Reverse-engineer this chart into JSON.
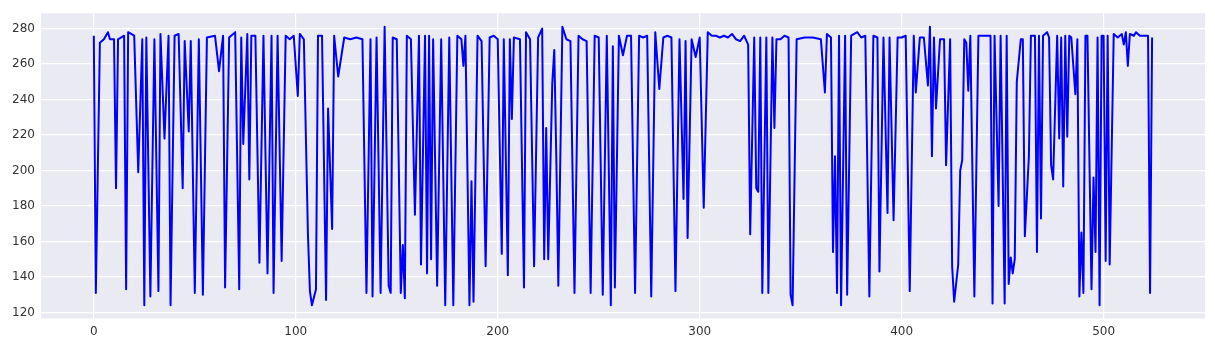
{
  "chart_data": {
    "type": "line",
    "color": "#0000ff",
    "xlim": [
      -26.2,
      550.2
    ],
    "ylim": [
      116.5,
      288.7
    ],
    "xticks": [
      0,
      100,
      200,
      300,
      400,
      500
    ],
    "yticks": [
      120,
      140,
      160,
      180,
      200,
      220,
      240,
      260,
      280
    ],
    "grid": true,
    "x": [
      0,
      1,
      3,
      5,
      7,
      8,
      10,
      11,
      12,
      15,
      16,
      17,
      20,
      22,
      24,
      25,
      26,
      28,
      30,
      32,
      33,
      35,
      37,
      38,
      40,
      42,
      44,
      45,
      47,
      48,
      50,
      52,
      54,
      56,
      60,
      62,
      64,
      65,
      67,
      70,
      72,
      73,
      74,
      76,
      77,
      78,
      80,
      82,
      84,
      86,
      88,
      89,
      91,
      93,
      95,
      97,
      99,
      101,
      102,
      104,
      106,
      107,
      108,
      110,
      111,
      113,
      115,
      116,
      118,
      119,
      121,
      124,
      127,
      130,
      133,
      135,
      137,
      138,
      140,
      142,
      144,
      146,
      147,
      148,
      150,
      152,
      153,
      154,
      155,
      157,
      159,
      161,
      162,
      164,
      165,
      166,
      167,
      168,
      170,
      172,
      174,
      176,
      178,
      180,
      182,
      183,
      184,
      186,
      187,
      188,
      190,
      192,
      194,
      196,
      198,
      200,
      202,
      203,
      205,
      206,
      207,
      208,
      211,
      213,
      214,
      216,
      218,
      220,
      222,
      223,
      224,
      225,
      227,
      228,
      229,
      230,
      232,
      234,
      236,
      238,
      240,
      242,
      244,
      246,
      248,
      250,
      252,
      254,
      256,
      257,
      258,
      260,
      262,
      264,
      266,
      268,
      270,
      272,
      274,
      276,
      278,
      280,
      282,
      284,
      286,
      288,
      290,
      292,
      293,
      294,
      296,
      298,
      300,
      302,
      304,
      306,
      308,
      310,
      312,
      314,
      316,
      318,
      320,
      322,
      324,
      325,
      327,
      328,
      329,
      330,
      331,
      333,
      334,
      336,
      337,
      338,
      340,
      342,
      344,
      345,
      346,
      348,
      352,
      356,
      360,
      362,
      363,
      365,
      366,
      367,
      368,
      369,
      370,
      372,
      373,
      375,
      378,
      380,
      382,
      384,
      386,
      388,
      389,
      391,
      393,
      394,
      396,
      398,
      400,
      402,
      404,
      406,
      407,
      409,
      411,
      413,
      414,
      415,
      416,
      417,
      419,
      421,
      422,
      424,
      425,
      426,
      428,
      429,
      430,
      431,
      432,
      433,
      434,
      436,
      438,
      440,
      442,
      444,
      445,
      446,
      448,
      449,
      451,
      452,
      453,
      454,
      455,
      456,
      457,
      459,
      460,
      461,
      463,
      464,
      466,
      467,
      468,
      469,
      470,
      472,
      473,
      474,
      475,
      477,
      478,
      479,
      480,
      481,
      482,
      483,
      484,
      486,
      487,
      488,
      489,
      490,
      491,
      492,
      494,
      495,
      496,
      497,
      498,
      499,
      500,
      501,
      502,
      503,
      505,
      507,
      509,
      510,
      511,
      512,
      513,
      515,
      516,
      518,
      520,
      522,
      523,
      524
    ],
    "values": [
      276,
      131,
      272,
      274,
      278,
      274,
      274,
      190,
      274,
      276,
      133,
      278,
      276,
      199,
      274,
      124,
      275,
      129,
      274,
      132,
      277,
      218,
      276,
      124,
      276,
      277,
      190,
      273,
      222,
      273,
      131,
      274,
      130,
      275,
      276,
      256,
      276,
      134,
      275,
      278,
      133,
      275,
      215,
      277,
      195,
      276,
      276,
      148,
      276,
      142,
      276,
      131,
      276,
      149,
      276,
      274,
      276,
      242,
      277,
      274,
      165,
      132,
      124,
      133,
      276,
      276,
      127,
      235,
      167,
      276,
      253,
      275,
      274,
      275,
      274,
      131,
      274,
      129,
      275,
      131,
      281,
      135,
      131,
      275,
      274,
      131,
      158,
      128,
      276,
      274,
      175,
      276,
      147,
      276,
      142,
      276,
      150,
      274,
      135,
      274,
      124,
      275,
      124,
      276,
      274,
      259,
      276,
      124,
      194,
      126,
      276,
      273,
      146,
      275,
      276,
      274,
      153,
      274,
      141,
      274,
      229,
      275,
      274,
      134,
      278,
      274,
      146,
      275,
      280,
      150,
      224,
      150,
      249,
      268,
      207,
      135,
      281,
      274,
      273,
      131,
      276,
      274,
      273,
      131,
      276,
      275,
      130,
      276,
      124,
      270,
      134,
      276,
      265,
      276,
      276,
      131,
      276,
      275,
      276,
      129,
      278,
      246,
      275,
      276,
      275,
      132,
      274,
      184,
      273,
      162,
      274,
      264,
      275,
      179,
      278,
      276,
      276,
      275,
      276,
      275,
      277,
      274,
      273,
      276,
      271,
      164,
      275,
      190,
      188,
      275,
      131,
      275,
      131,
      275,
      224,
      274,
      274,
      276,
      275,
      130,
      124,
      274,
      275,
      275,
      274,
      244,
      277,
      275,
      154,
      208,
      131,
      276,
      124,
      276,
      130,
      276,
      278,
      275,
      276,
      129,
      276,
      275,
      143,
      275,
      176,
      275,
      172,
      275,
      275,
      276,
      132,
      276,
      244,
      275,
      275,
      248,
      281,
      208,
      275,
      235,
      274,
      274,
      203,
      274,
      146,
      126,
      147,
      200,
      206,
      274,
      272,
      245,
      276,
      129,
      276,
      276,
      276,
      276,
      125,
      276,
      180,
      276,
      125,
      276,
      136,
      151,
      142,
      150,
      250,
      274,
      274,
      163,
      208,
      276,
      276,
      154,
      276,
      173,
      276,
      278,
      275,
      203,
      195,
      276,
      218,
      275,
      191,
      276,
      219,
      276,
      275,
      243,
      274,
      129,
      165,
      131,
      276,
      276,
      133,
      196,
      154,
      275,
      124,
      276,
      276,
      149,
      276,
      147,
      277,
      275,
      277,
      271,
      278,
      259,
      277,
      276,
      278,
      276,
      276,
      276,
      131,
      275
    ]
  }
}
